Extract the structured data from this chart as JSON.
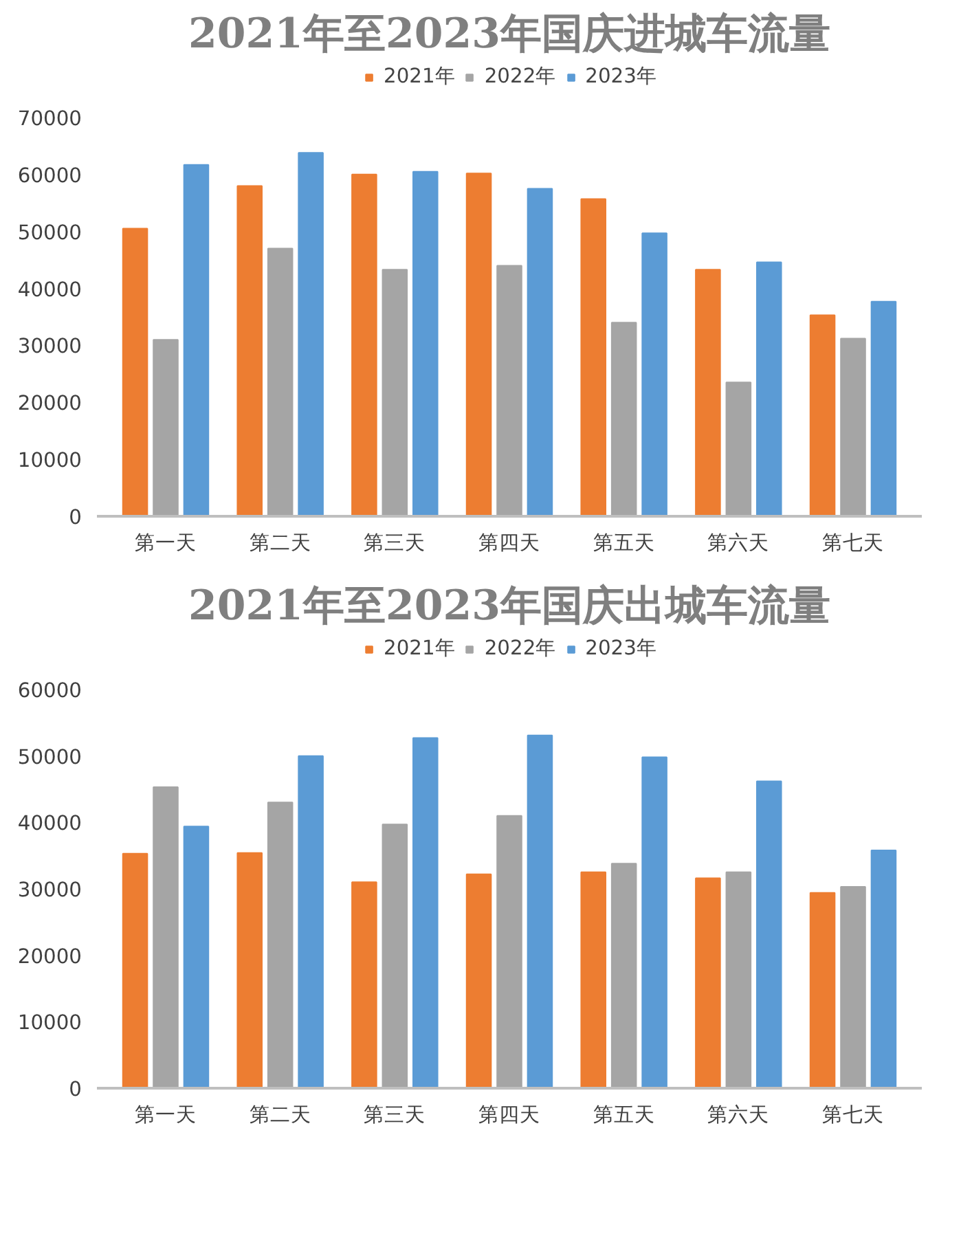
{
  "chart_data": [
    {
      "type": "bar",
      "title": "2021年至2023年国庆进城车流量",
      "categories": [
        "第一天",
        "第二天",
        "第三天",
        "第四天",
        "第五天",
        "第六天",
        "第七天"
      ],
      "series": [
        {
          "name": "2021年",
          "color": "#ed7d31",
          "values": [
            50500,
            58000,
            60000,
            60200,
            55700,
            43300,
            35300
          ]
        },
        {
          "name": "2022年",
          "color": "#a5a5a5",
          "values": [
            31000,
            47000,
            43300,
            44000,
            34000,
            23500,
            31200
          ]
        },
        {
          "name": "2023年",
          "color": "#5b9bd5",
          "values": [
            61700,
            63800,
            60500,
            57500,
            49700,
            44600,
            37700
          ]
        }
      ],
      "ylim": [
        0,
        70000
      ],
      "yticks": [
        0,
        10000,
        20000,
        30000,
        40000,
        50000,
        60000,
        70000
      ],
      "grid": false,
      "legend": "top"
    },
    {
      "type": "bar",
      "title": "2021年至2023年国庆出城车流量",
      "categories": [
        "第一天",
        "第二天",
        "第三天",
        "第四天",
        "第五天",
        "第六天",
        "第七天"
      ],
      "series": [
        {
          "name": "2021年",
          "color": "#ed7d31",
          "values": [
            35300,
            35400,
            31000,
            32200,
            32500,
            31600,
            29400
          ]
        },
        {
          "name": "2022年",
          "color": "#a5a5a5",
          "values": [
            45300,
            43000,
            39700,
            41000,
            33800,
            32500,
            30300
          ]
        },
        {
          "name": "2023年",
          "color": "#5b9bd5",
          "values": [
            39400,
            50000,
            52700,
            53100,
            49800,
            46200,
            35800
          ]
        }
      ],
      "ylim": [
        0,
        60000
      ],
      "yticks": [
        0,
        10000,
        20000,
        30000,
        40000,
        50000,
        60000
      ],
      "grid": false,
      "legend": "top"
    }
  ]
}
